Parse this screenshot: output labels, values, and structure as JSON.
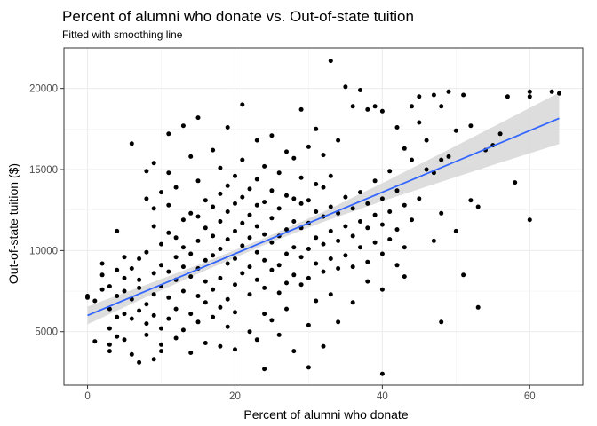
{
  "chart_data": {
    "type": "scatter",
    "title": "Percent of alumni who donate vs. Out-of-state tuition",
    "subtitle": "Fitted with smoothing line",
    "xlabel": "Percent of alumni who donate",
    "ylabel": "Out-of-state tuition ($)",
    "xlim": [
      -3.2,
      67.2
    ],
    "ylim": [
      1700,
      22500
    ],
    "x_ticks": [
      0,
      20,
      40,
      60
    ],
    "y_ticks": [
      5000,
      10000,
      15000,
      20000
    ],
    "x_tick_labels": [
      "0",
      "20",
      "40",
      "60"
    ],
    "y_tick_labels": [
      "5000",
      "10000",
      "15000",
      "20000"
    ],
    "grid": true,
    "point_color": "#000000",
    "smooth": {
      "method": "linear",
      "color": "#3366ff",
      "band_color": "#d9d9d9",
      "x": [
        0,
        8,
        16,
        24,
        32,
        40,
        48,
        56,
        64
      ],
      "y": [
        6000,
        7520,
        9040,
        10560,
        12080,
        13600,
        15120,
        16640,
        18160
      ],
      "se_low": [
        5450,
        7140,
        8780,
        10350,
        11770,
        13040,
        14240,
        15420,
        16580
      ],
      "se_high": [
        6550,
        7900,
        9300,
        10770,
        12390,
        14160,
        16000,
        17860,
        19740
      ]
    },
    "points": [
      [
        0,
        7200
      ],
      [
        0,
        7100
      ],
      [
        1,
        4400
      ],
      [
        1,
        6900
      ],
      [
        2,
        8500
      ],
      [
        2,
        9200
      ],
      [
        2,
        7600
      ],
      [
        3,
        4200
      ],
      [
        3,
        3800
      ],
      [
        3,
        5200
      ],
      [
        3,
        6400
      ],
      [
        3,
        7800
      ],
      [
        4,
        4700
      ],
      [
        4,
        5900
      ],
      [
        4,
        7200
      ],
      [
        4,
        11200
      ],
      [
        4,
        8800
      ],
      [
        5,
        4500
      ],
      [
        5,
        6100
      ],
      [
        5,
        7500
      ],
      [
        5,
        8300
      ],
      [
        5,
        9600
      ],
      [
        6,
        16600
      ],
      [
        6,
        3600
      ],
      [
        6,
        5800
      ],
      [
        6,
        7000
      ],
      [
        6,
        8900
      ],
      [
        7,
        6300
      ],
      [
        7,
        9500
      ],
      [
        7,
        3100
      ],
      [
        7,
        7700
      ],
      [
        7,
        8200
      ],
      [
        8,
        4800
      ],
      [
        8,
        6700
      ],
      [
        8,
        9900
      ],
      [
        8,
        13200
      ],
      [
        8,
        14900
      ],
      [
        8,
        5500
      ],
      [
        9,
        3300
      ],
      [
        9,
        6000
      ],
      [
        9,
        7300
      ],
      [
        9,
        8600
      ],
      [
        9,
        11500
      ],
      [
        9,
        12600
      ],
      [
        9,
        15400
      ],
      [
        10,
        3800
      ],
      [
        10,
        5200
      ],
      [
        10,
        7800
      ],
      [
        10,
        9100
      ],
      [
        10,
        10400
      ],
      [
        10,
        13600
      ],
      [
        10,
        4200
      ],
      [
        11,
        5800
      ],
      [
        11,
        7100
      ],
      [
        11,
        8700
      ],
      [
        11,
        11100
      ],
      [
        11,
        12800
      ],
      [
        11,
        17200
      ],
      [
        11,
        14800
      ],
      [
        12,
        6400
      ],
      [
        12,
        8200
      ],
      [
        12,
        9600
      ],
      [
        12,
        10800
      ],
      [
        12,
        4600
      ],
      [
        12,
        13900
      ],
      [
        13,
        7500
      ],
      [
        13,
        9000
      ],
      [
        13,
        10200
      ],
      [
        13,
        11900
      ],
      [
        13,
        17700
      ],
      [
        13,
        5100
      ],
      [
        14,
        6100
      ],
      [
        14,
        8400
      ],
      [
        14,
        9800
      ],
      [
        14,
        12300
      ],
      [
        14,
        15800
      ],
      [
        14,
        3700
      ],
      [
        15,
        7200
      ],
      [
        15,
        8900
      ],
      [
        15,
        10600
      ],
      [
        15,
        12100
      ],
      [
        15,
        14300
      ],
      [
        15,
        18200
      ],
      [
        15,
        5600
      ],
      [
        16,
        6800
      ],
      [
        16,
        8100
      ],
      [
        16,
        9400
      ],
      [
        16,
        11400
      ],
      [
        16,
        13100
      ],
      [
        16,
        4300
      ],
      [
        17,
        7600
      ],
      [
        17,
        9700
      ],
      [
        17,
        10900
      ],
      [
        17,
        12700
      ],
      [
        17,
        16200
      ],
      [
        17,
        5900
      ],
      [
        18,
        6500
      ],
      [
        18,
        8300
      ],
      [
        18,
        10100
      ],
      [
        18,
        11800
      ],
      [
        18,
        13500
      ],
      [
        18,
        15100
      ],
      [
        18,
        4100
      ],
      [
        19,
        7000
      ],
      [
        19,
        9200
      ],
      [
        19,
        10700
      ],
      [
        19,
        12400
      ],
      [
        19,
        14000
      ],
      [
        19,
        17600
      ],
      [
        19,
        5300
      ],
      [
        20,
        7900
      ],
      [
        20,
        9500
      ],
      [
        20,
        11200
      ],
      [
        20,
        12900
      ],
      [
        20,
        14600
      ],
      [
        20,
        3900
      ],
      [
        20,
        6200
      ],
      [
        21,
        8600
      ],
      [
        21,
        10300
      ],
      [
        21,
        11700
      ],
      [
        21,
        13300
      ],
      [
        21,
        15600
      ],
      [
        21,
        19000
      ],
      [
        22,
        7300
      ],
      [
        22,
        9000
      ],
      [
        22,
        10800
      ],
      [
        22,
        12200
      ],
      [
        22,
        13800
      ],
      [
        22,
        5000
      ],
      [
        23,
        8200
      ],
      [
        23,
        9900
      ],
      [
        23,
        11500
      ],
      [
        23,
        12800
      ],
      [
        23,
        14400
      ],
      [
        23,
        16800
      ],
      [
        23,
        4500
      ],
      [
        24,
        7700
      ],
      [
        24,
        9400
      ],
      [
        24,
        11000
      ],
      [
        24,
        13000
      ],
      [
        24,
        15200
      ],
      [
        24,
        2700
      ],
      [
        24,
        6100
      ],
      [
        25,
        8800
      ],
      [
        25,
        10500
      ],
      [
        25,
        12000
      ],
      [
        25,
        13700
      ],
      [
        25,
        17100
      ],
      [
        25,
        5700
      ],
      [
        26,
        7400
      ],
      [
        26,
        9100
      ],
      [
        26,
        10900
      ],
      [
        26,
        12600
      ],
      [
        26,
        14800
      ],
      [
        26,
        4800
      ],
      [
        27,
        8000
      ],
      [
        27,
        9800
      ],
      [
        27,
        11300
      ],
      [
        27,
        13400
      ],
      [
        27,
        16100
      ],
      [
        27,
        6400
      ],
      [
        28,
        8500
      ],
      [
        28,
        10200
      ],
      [
        28,
        11800
      ],
      [
        28,
        13200
      ],
      [
        28,
        15700
      ],
      [
        28,
        3800
      ],
      [
        29,
        7900
      ],
      [
        29,
        9600
      ],
      [
        29,
        11400
      ],
      [
        29,
        12900
      ],
      [
        29,
        14500
      ],
      [
        29,
        18700
      ],
      [
        30,
        8300
      ],
      [
        30,
        10100
      ],
      [
        30,
        11700
      ],
      [
        30,
        13100
      ],
      [
        30,
        16400
      ],
      [
        30,
        2800
      ],
      [
        30,
        5400
      ],
      [
        31,
        9200
      ],
      [
        31,
        10800
      ],
      [
        31,
        12400
      ],
      [
        31,
        14100
      ],
      [
        31,
        17500
      ],
      [
        31,
        6900
      ],
      [
        32,
        8700
      ],
      [
        32,
        10400
      ],
      [
        32,
        12100
      ],
      [
        32,
        13900
      ],
      [
        32,
        15900
      ],
      [
        32,
        4100
      ],
      [
        33,
        9500
      ],
      [
        33,
        11200
      ],
      [
        33,
        12700
      ],
      [
        33,
        14600
      ],
      [
        33,
        21700
      ],
      [
        33,
        7300
      ],
      [
        34,
        8900
      ],
      [
        34,
        10600
      ],
      [
        34,
        12300
      ],
      [
        34,
        16800
      ],
      [
        34,
        5600
      ],
      [
        35,
        9700
      ],
      [
        35,
        11500
      ],
      [
        35,
        13300
      ],
      [
        35,
        20100
      ],
      [
        36,
        9000
      ],
      [
        36,
        10900
      ],
      [
        36,
        12600
      ],
      [
        36,
        18900
      ],
      [
        36,
        6800
      ],
      [
        37,
        10200
      ],
      [
        37,
        11800
      ],
      [
        37,
        13600
      ],
      [
        37,
        19900
      ],
      [
        38,
        9300
      ],
      [
        38,
        11400
      ],
      [
        38,
        12900
      ],
      [
        38,
        18700
      ],
      [
        38,
        8100
      ],
      [
        39,
        10500
      ],
      [
        39,
        12200
      ],
      [
        39,
        14300
      ],
      [
        39,
        18900
      ],
      [
        40,
        2400
      ],
      [
        40,
        9800
      ],
      [
        40,
        11600
      ],
      [
        40,
        13200
      ],
      [
        40,
        18600
      ],
      [
        40,
        7600
      ],
      [
        41,
        10700
      ],
      [
        41,
        12400
      ],
      [
        41,
        14900
      ],
      [
        42,
        9100
      ],
      [
        42,
        11300
      ],
      [
        42,
        13700
      ],
      [
        42,
        17600
      ],
      [
        43,
        8400
      ],
      [
        43,
        10200
      ],
      [
        43,
        12800
      ],
      [
        43,
        16300
      ],
      [
        44,
        11900
      ],
      [
        44,
        15600
      ],
      [
        44,
        18900
      ],
      [
        45,
        13200
      ],
      [
        45,
        17900
      ],
      [
        45,
        19500
      ],
      [
        46,
        15000
      ],
      [
        46,
        16800
      ],
      [
        47,
        10600
      ],
      [
        47,
        14800
      ],
      [
        47,
        19600
      ],
      [
        48,
        5600
      ],
      [
        48,
        12300
      ],
      [
        48,
        15600
      ],
      [
        48,
        18900
      ],
      [
        49,
        15800
      ],
      [
        49,
        19800
      ],
      [
        50,
        11200
      ],
      [
        50,
        17400
      ],
      [
        51,
        8500
      ],
      [
        51,
        19600
      ],
      [
        52,
        13100
      ],
      [
        52,
        17700
      ],
      [
        53,
        6500
      ],
      [
        53,
        12700
      ],
      [
        54,
        16200
      ],
      [
        55,
        16500
      ],
      [
        56,
        17200
      ],
      [
        57,
        19500
      ],
      [
        58,
        14200
      ],
      [
        60,
        11900
      ],
      [
        60,
        19800
      ],
      [
        60,
        19500
      ],
      [
        63,
        19800
      ],
      [
        64,
        19700
      ]
    ]
  }
}
